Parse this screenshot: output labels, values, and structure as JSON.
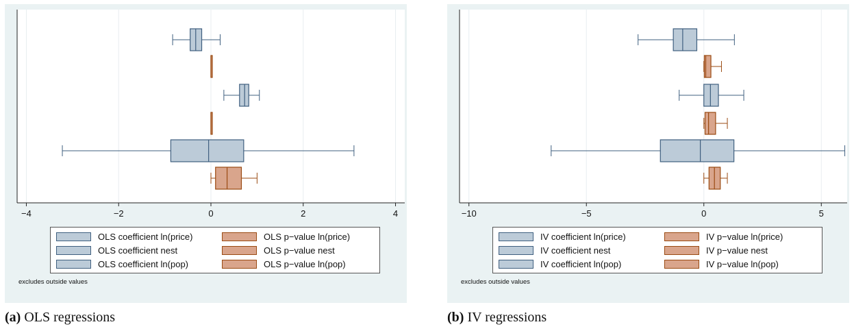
{
  "colors": {
    "coef_fill": "#bccbd8",
    "coef_line": "#3f5f7f",
    "pval_fill": "#d9a58c",
    "pval_line": "#9a4a12",
    "axis": "#222222",
    "grid": "#ffffff"
  },
  "chart_data": [
    {
      "type": "boxplot",
      "orientation": "horizontal",
      "caption_tag": "(a)",
      "caption_text": "OLS regressions",
      "xlim": [
        -4.2,
        4.2
      ],
      "xticks": [
        -4,
        -2,
        0,
        2,
        4
      ],
      "tick_labels": [
        "−4",
        "−2",
        "0",
        "2",
        "4"
      ],
      "note": "excludes outside values",
      "series": [
        {
          "name": "OLS coefficient ln(price)",
          "kind": "coef",
          "min": -0.83,
          "q1": -0.45,
          "median": -0.33,
          "q3": -0.2,
          "max": 0.2
        },
        {
          "name": "OLS p−value ln(price)",
          "kind": "pval",
          "min": 0.0,
          "q1": 0.0,
          "median": 0.0,
          "q3": 0.01,
          "max": 0.01
        },
        {
          "name": "OLS coefficient ln(pop)",
          "kind": "coef",
          "min": 0.28,
          "q1": 0.62,
          "median": 0.73,
          "q3": 0.82,
          "max": 1.05
        },
        {
          "name": "OLS p−value nest",
          "kind": "pval",
          "min": 0.0,
          "q1": 0.0,
          "median": 0.0,
          "q3": 0.01,
          "max": 0.01
        },
        {
          "name": "OLS coefficient nest",
          "kind": "coef",
          "min": -3.22,
          "q1": -0.87,
          "median": -0.05,
          "q3": 0.71,
          "max": 3.1
        },
        {
          "name": "OLS p−value ln(pop)",
          "kind": "pval",
          "min": 0.0,
          "q1": 0.1,
          "median": 0.35,
          "q3": 0.66,
          "max": 1.0
        }
      ],
      "legend": [
        [
          "OLS coefficient ln(price)",
          "OLS p−value ln(price)"
        ],
        [
          "OLS coefficient nest",
          "OLS p−value nest"
        ],
        [
          "OLS coefficient ln(pop)",
          "OLS p−value ln(pop)"
        ]
      ]
    },
    {
      "type": "boxplot",
      "orientation": "horizontal",
      "caption_tag": "(b)",
      "caption_text": "IV regressions",
      "xlim": [
        -10.4,
        6.1
      ],
      "xticks": [
        -10,
        -5,
        0,
        5
      ],
      "tick_labels": [
        "−10",
        "−5",
        "0",
        "5"
      ],
      "note": "excludes outside values",
      "series": [
        {
          "name": "IV coefficient ln(price)",
          "kind": "coef",
          "min": -2.8,
          "q1": -1.3,
          "median": -0.9,
          "q3": -0.3,
          "max": 1.3
        },
        {
          "name": "IV p−value ln(price)",
          "kind": "pval",
          "min": 0.0,
          "q1": 0.02,
          "median": 0.08,
          "q3": 0.3,
          "max": 0.75
        },
        {
          "name": "IV coefficient ln(pop)",
          "kind": "coef",
          "min": -1.05,
          "q1": 0.0,
          "median": 0.28,
          "q3": 0.62,
          "max": 1.7
        },
        {
          "name": "IV p−value nest",
          "kind": "pval",
          "min": 0.0,
          "q1": 0.05,
          "median": 0.2,
          "q3": 0.5,
          "max": 1.0
        },
        {
          "name": "IV coefficient nest",
          "kind": "coef",
          "min": -6.5,
          "q1": -1.85,
          "median": -0.15,
          "q3": 1.28,
          "max": 6.0
        },
        {
          "name": "IV p−value ln(pop)",
          "kind": "pval",
          "min": 0.0,
          "q1": 0.22,
          "median": 0.45,
          "q3": 0.7,
          "max": 1.0
        }
      ],
      "legend": [
        [
          "IV coefficient ln(price)",
          "IV p−value ln(price)"
        ],
        [
          "IV coefficient nest",
          "IV p−value nest"
        ],
        [
          "IV coefficient ln(pop)",
          "IV p−value ln(pop)"
        ]
      ]
    }
  ]
}
